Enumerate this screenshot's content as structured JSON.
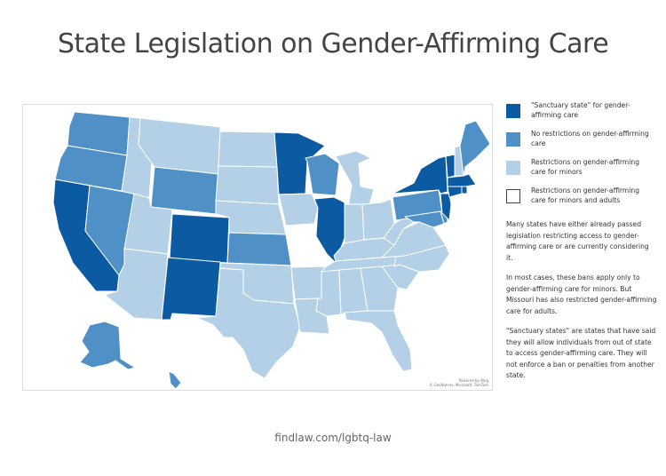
{
  "title": "State Legislation on Gender-Affirming Care",
  "colors": {
    "sanctuary": "#0b5aa2",
    "no_restrictions": "#4f91c6",
    "minors": "#b3d0e6",
    "minors_adults": "#ffffff"
  },
  "legend": [
    {
      "key": "sanctuary",
      "label": "\"Sanctuary state\" for gender-affirming care"
    },
    {
      "key": "no_restrictions",
      "label": "No restrictions on gender-affirming care"
    },
    {
      "key": "minors",
      "label": "Restrictions on gender-affirming care for minors"
    },
    {
      "key": "minors_adults",
      "label": "Restrictions on gender-affirming care for minors and adults"
    }
  ],
  "notes": [
    "Many states have either already passed legislation restricting access to gender-affirming care or are currently considering it.",
    "In most cases, these bans apply only to gender-affirming care for minors. But Missouri has also restricted gender-affirming care for adults.",
    "\"Sanctuary states\" are states that have said they will allow individuals from out of state to access gender-affirming care. They will not enforce a ban or penalties from another state."
  ],
  "map_credit": {
    "line1": "Powered by Bing",
    "line2": "© GeoNames, Microsoft, TomTom"
  },
  "footer": "findlaw.com/lgbtq-law",
  "states": {
    "WA": "no_restrictions",
    "OR": "no_restrictions",
    "CA": "sanctuary",
    "NV": "no_restrictions",
    "ID": "minors",
    "MT": "minors",
    "WY": "no_restrictions",
    "UT": "minors",
    "AZ": "minors",
    "CO": "sanctuary",
    "NM": "sanctuary",
    "ND": "minors",
    "SD": "minors",
    "NE": "minors",
    "KS": "no_restrictions",
    "OK": "minors",
    "TX": "minors",
    "MN": "sanctuary",
    "IA": "minors",
    "MO": "minors_adults",
    "AR": "minors",
    "LA": "minors",
    "WI": "no_restrictions",
    "IL": "sanctuary",
    "MI": "minors",
    "IN": "minors",
    "OH": "minors",
    "KY": "minors",
    "TN": "minors",
    "MS": "minors",
    "AL": "minors",
    "GA": "minors",
    "FL": "minors",
    "SC": "minors",
    "NC": "minors",
    "VA": "minors",
    "WV": "minors",
    "PA": "no_restrictions",
    "NY": "sanctuary",
    "VT": "sanctuary",
    "NH": "minors",
    "ME": "no_restrictions",
    "MA": "sanctuary",
    "CT": "sanctuary",
    "RI": "sanctuary",
    "NJ": "sanctuary",
    "DE": "no_restrictions",
    "MD": "no_restrictions",
    "AK": "no_restrictions",
    "HI": "no_restrictions"
  }
}
